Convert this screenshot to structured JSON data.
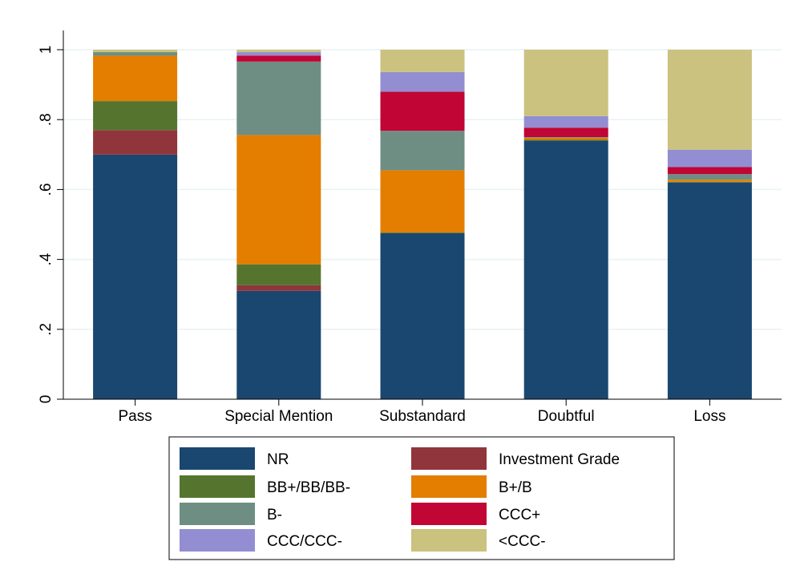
{
  "chart_data": {
    "type": "bar",
    "stacked": true,
    "categories": [
      "Pass",
      "Special Mention",
      "Substandard",
      "Doubtful",
      "Loss"
    ],
    "ylim": [
      0,
      1
    ],
    "yticks": [
      0,
      0.2,
      0.4,
      0.6,
      0.8,
      1
    ],
    "ytick_labels": [
      "0",
      ".2",
      ".4",
      ".6",
      ".8",
      "1"
    ],
    "grid": true,
    "legend_position": "bottom",
    "series": [
      {
        "name": "NR",
        "color": "#1a476f",
        "values": [
          0.7,
          0.31,
          0.475,
          0.74,
          0.62
        ]
      },
      {
        "name": "Investment Grade",
        "color": "#90353b",
        "values": [
          0.07,
          0.016,
          0.0,
          0.0,
          0.0
        ]
      },
      {
        "name": "BB+/BB/BB-",
        "color": "#55752f",
        "values": [
          0.083,
          0.06,
          0.002,
          0.002,
          0.002
        ]
      },
      {
        "name": "B+/B",
        "color": "#e37e00",
        "values": [
          0.13,
          0.37,
          0.178,
          0.006,
          0.006
        ]
      },
      {
        "name": "B-",
        "color": "#6e8e84",
        "values": [
          0.01,
          0.21,
          0.113,
          0.002,
          0.016
        ]
      },
      {
        "name": "CCC+",
        "color": "#c10534",
        "values": [
          0.0,
          0.017,
          0.112,
          0.027,
          0.02
        ]
      },
      {
        "name": "CCC/CCC-",
        "color": "#938dd2",
        "values": [
          0.0,
          0.01,
          0.056,
          0.033,
          0.05
        ]
      },
      {
        "name": "<CCC-",
        "color": "#cac27e",
        "values": [
          0.007,
          0.007,
          0.064,
          0.19,
          0.286
        ]
      }
    ]
  }
}
